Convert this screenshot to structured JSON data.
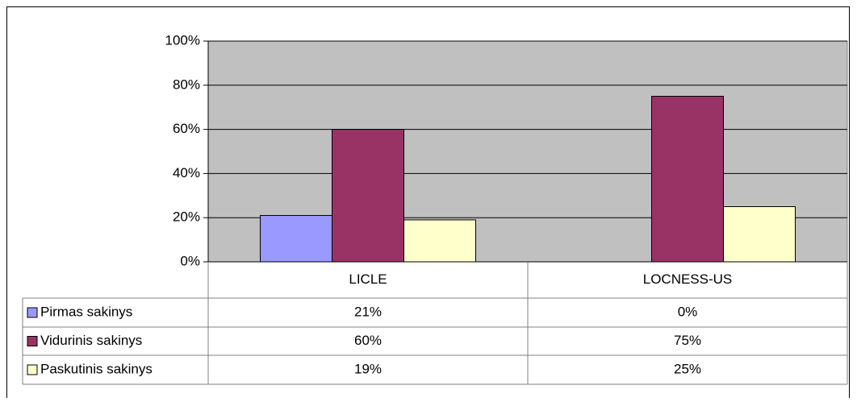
{
  "chart_data": {
    "type": "bar",
    "categories": [
      "LICLE",
      "LOCNESS-US"
    ],
    "series": [
      {
        "name": "Pirmas sakinys",
        "color": "#9999ff",
        "values": [
          21,
          0
        ],
        "value_labels": [
          "21%",
          "0%"
        ]
      },
      {
        "name": "Vidurinis sakinys",
        "color": "#993366",
        "values": [
          60,
          75
        ],
        "value_labels": [
          "60%",
          "75%"
        ]
      },
      {
        "name": "Paskutinis sakinys",
        "color": "#ffffcc",
        "values": [
          19,
          25
        ],
        "value_labels": [
          "19%",
          "25%"
        ]
      }
    ],
    "ylim": [
      0,
      100
    ],
    "yticks": [
      {
        "value": 0,
        "label": "0%"
      },
      {
        "value": 20,
        "label": "20%"
      },
      {
        "value": 40,
        "label": "40%"
      },
      {
        "value": 60,
        "label": "60%"
      },
      {
        "value": 80,
        "label": "80%"
      },
      {
        "value": 100,
        "label": "100%"
      }
    ],
    "plot_background": "#c0c0c0",
    "data_table": true
  }
}
